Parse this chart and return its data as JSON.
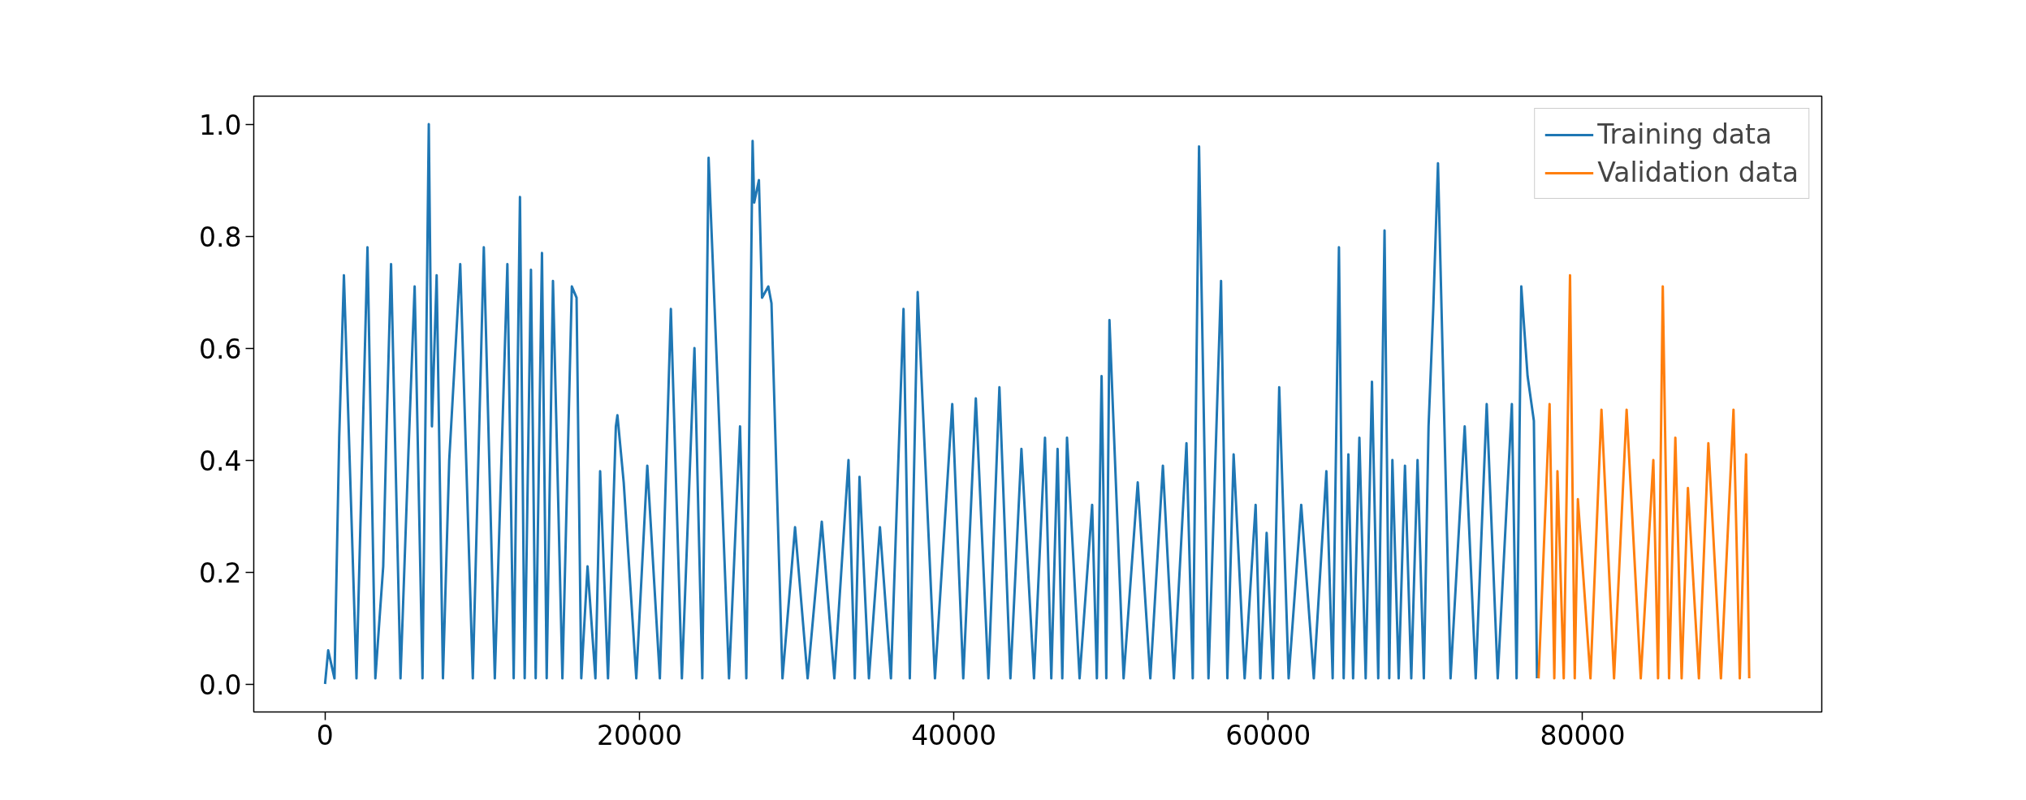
{
  "chart_data": {
    "type": "line",
    "xlim": [
      -4535,
      95215
    ],
    "ylim": [
      -0.05,
      1.05
    ],
    "xticks": [
      0,
      20000,
      40000,
      60000,
      80000
    ],
    "yticks": [
      {
        "value": 0,
        "label": "0.0"
      },
      0.2,
      0.4,
      0.6,
      0.8,
      {
        "value": 1,
        "label": "1.0"
      }
    ],
    "grid": false,
    "legend": "top right",
    "line_style": "solid",
    "marker": "none",
    "series": [
      {
        "name": "Training data",
        "color": "#1f77b4",
        "x": [
          0,
          200,
          600,
          900,
          1200,
          2000,
          2700,
          3200,
          3700,
          3900,
          4200,
          4800,
          5300,
          5700,
          6200,
          6600,
          6800,
          7100,
          7500,
          7900,
          8100,
          8600,
          9400,
          10100,
          10800,
          11600,
          12000,
          12400,
          12700,
          13100,
          13400,
          13800,
          14100,
          14500,
          15100,
          15700,
          16000,
          16300,
          16700,
          17200,
          17500,
          18000,
          18500,
          18600,
          19000,
          19800,
          20500,
          21300,
          22000,
          22700,
          23500,
          24000,
          24400,
          25000,
          25700,
          26400,
          26800,
          27200,
          27300,
          27600,
          27800,
          28200,
          28400,
          29100,
          29900,
          30700,
          31600,
          32400,
          33300,
          33700,
          34000,
          34600,
          35300,
          36000,
          36800,
          37200,
          37700,
          38800,
          39900,
          40600,
          41400,
          42200,
          42900,
          43600,
          44300,
          45100,
          45800,
          46200,
          46600,
          46900,
          47200,
          48000,
          48800,
          49100,
          49400,
          49700,
          49900,
          50800,
          51700,
          52500,
          53300,
          54000,
          54800,
          55200,
          55600,
          56200,
          57000,
          57400,
          57800,
          58500,
          59200,
          59500,
          59900,
          60300,
          60700,
          61300,
          62100,
          62900,
          63700,
          64100,
          64500,
          64800,
          65100,
          65400,
          65800,
          66200,
          66600,
          67000,
          67400,
          67700,
          67900,
          68300,
          68700,
          69100,
          69500,
          69900,
          70200,
          70500,
          70800,
          71600,
          72500,
          73200,
          73900,
          74600,
          75500,
          75800,
          76100,
          76500,
          76900,
          77100
        ],
        "values": [
          0.0,
          0.06,
          0.01,
          0.44,
          0.73,
          0.01,
          0.78,
          0.01,
          0.21,
          0.44,
          0.75,
          0.01,
          0.41,
          0.71,
          0.01,
          1.0,
          0.46,
          0.73,
          0.01,
          0.4,
          0.5,
          0.75,
          0.01,
          0.78,
          0.01,
          0.75,
          0.01,
          0.87,
          0.01,
          0.74,
          0.01,
          0.77,
          0.01,
          0.72,
          0.01,
          0.71,
          0.69,
          0.01,
          0.21,
          0.01,
          0.38,
          0.01,
          0.46,
          0.48,
          0.36,
          0.01,
          0.39,
          0.01,
          0.67,
          0.01,
          0.6,
          0.01,
          0.94,
          0.52,
          0.01,
          0.46,
          0.01,
          0.97,
          0.86,
          0.9,
          0.69,
          0.71,
          0.68,
          0.01,
          0.28,
          0.01,
          0.29,
          0.01,
          0.4,
          0.01,
          0.37,
          0.01,
          0.28,
          0.01,
          0.67,
          0.01,
          0.7,
          0.01,
          0.5,
          0.01,
          0.51,
          0.01,
          0.53,
          0.01,
          0.42,
          0.01,
          0.44,
          0.01,
          0.42,
          0.01,
          0.44,
          0.01,
          0.32,
          0.01,
          0.55,
          0.01,
          0.65,
          0.01,
          0.36,
          0.01,
          0.39,
          0.01,
          0.43,
          0.01,
          0.96,
          0.01,
          0.72,
          0.01,
          0.41,
          0.01,
          0.32,
          0.01,
          0.27,
          0.01,
          0.53,
          0.01,
          0.32,
          0.01,
          0.38,
          0.01,
          0.78,
          0.01,
          0.41,
          0.01,
          0.44,
          0.01,
          0.54,
          0.01,
          0.81,
          0.01,
          0.4,
          0.01,
          0.39,
          0.01,
          0.4,
          0.01,
          0.46,
          0.67,
          0.93,
          0.01,
          0.46,
          0.01,
          0.5,
          0.01,
          0.5,
          0.01,
          0.71,
          0.55,
          0.47,
          0.01
        ]
      },
      {
        "name": "Validation data",
        "color": "#ff7f0e",
        "x": [
          77200,
          77900,
          78200,
          78400,
          78800,
          79200,
          79500,
          79700,
          80500,
          81200,
          82000,
          82800,
          83700,
          84500,
          84800,
          85100,
          85500,
          85900,
          86300,
          86700,
          87400,
          88000,
          88800,
          89600,
          90000,
          90400,
          90600
        ],
        "values": [
          0.01,
          0.5,
          0.01,
          0.38,
          0.01,
          0.73,
          0.01,
          0.33,
          0.01,
          0.49,
          0.01,
          0.49,
          0.01,
          0.4,
          0.01,
          0.71,
          0.01,
          0.44,
          0.01,
          0.35,
          0.01,
          0.43,
          0.01,
          0.49,
          0.01,
          0.41,
          0.01
        ]
      }
    ]
  }
}
